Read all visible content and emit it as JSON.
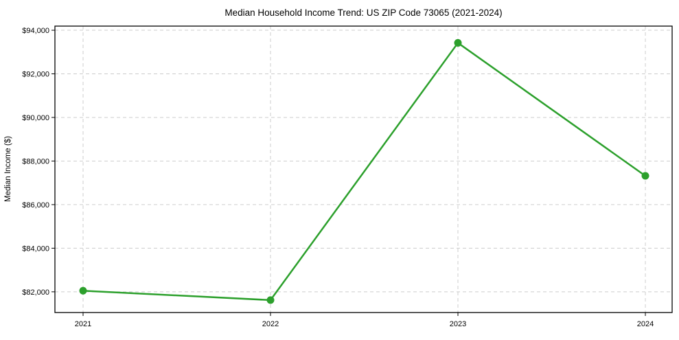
{
  "chart_data": {
    "type": "line",
    "title": "Median Household Income Trend: US ZIP Code 73065 (2021-2024)",
    "xlabel": "",
    "ylabel": "Median Income ($)",
    "categories": [
      "2021",
      "2022",
      "2023",
      "2024"
    ],
    "series": [
      {
        "name": "Median Household Income",
        "values": [
          82050,
          81620,
          93420,
          87320
        ]
      }
    ],
    "ylim": [
      81050,
      94190
    ],
    "yticks": [
      82000,
      84000,
      86000,
      88000,
      90000,
      92000,
      94000
    ],
    "ytick_labels": [
      "$82,000",
      "$84,000",
      "$86,000",
      "$88,000",
      "$90,000",
      "$92,000",
      "$94,000"
    ],
    "grid": true,
    "grid_style": "dashed",
    "legend": "none",
    "marker": "circle",
    "colors": {
      "line": "#2ca02c",
      "marker": "#2ca02c",
      "grid": "#cccccc",
      "axis": "#000000",
      "text": "#000000",
      "background": "#ffffff"
    }
  }
}
